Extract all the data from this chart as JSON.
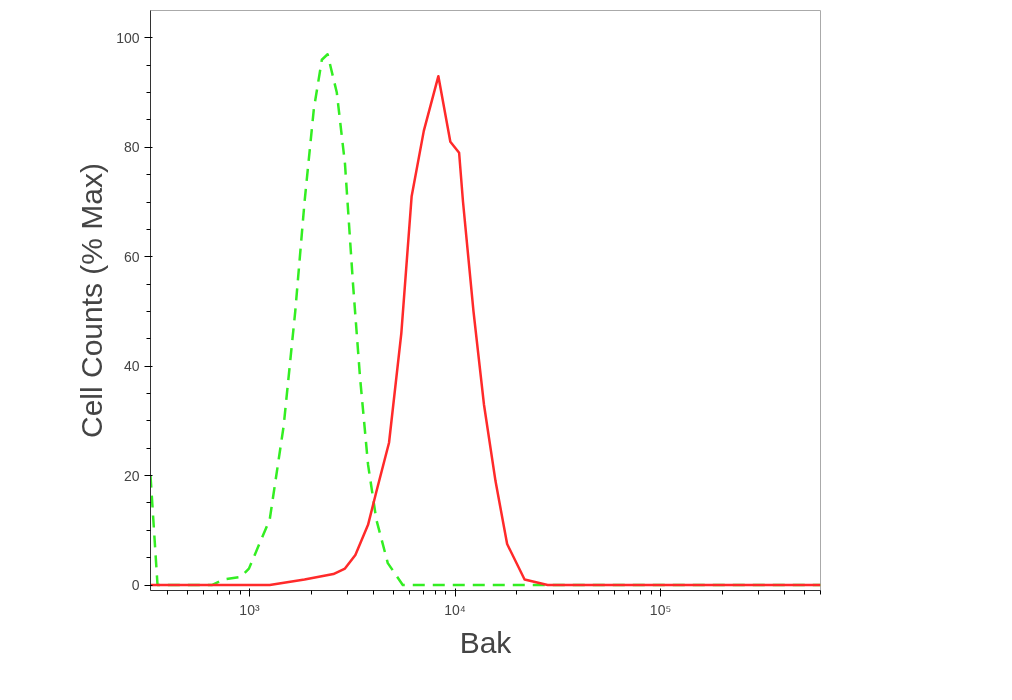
{
  "chart_data": {
    "type": "line",
    "xlabel": "Bak",
    "ylabel": "Cell Counts (% Max)",
    "log": "x",
    "xlim": [
      330,
      600000
    ],
    "xticks": [
      {
        "value": 1000,
        "label": "10³"
      },
      {
        "value": 10000,
        "label": "10⁴"
      },
      {
        "value": 100000,
        "label": "10⁵"
      }
    ],
    "ylim": [
      -1,
      105
    ],
    "yticks": [
      0,
      20,
      40,
      60,
      80,
      100
    ],
    "marker": "none",
    "series": [
      {
        "color": "#33ee22",
        "line_style": "dashed",
        "x": [
          330,
          357,
          656,
          747,
          907,
          994,
          1255,
          1466,
          1670,
          1853,
          2057,
          2250,
          2400,
          2660,
          2915,
          3190,
          3450,
          3775,
          4140,
          4710,
          5570,
          21800,
          600000
        ],
        "values": [
          20,
          0,
          0,
          1,
          1.5,
          3,
          12,
          29,
          50,
          70,
          87,
          96,
          97,
          90,
          77,
          55,
          38,
          22,
          12,
          4,
          0,
          0,
          0
        ]
      },
      {
        "color": "#ff2a2a",
        "line_style": "solid",
        "x": [
          330,
          1255,
          1853,
          2560,
          2915,
          3275,
          3775,
          4140,
          4775,
          5480,
          6150,
          7050,
          8300,
          9490,
          10470,
          10940,
          12300,
          13830,
          15740,
          17930,
          21800,
          28240,
          600000
        ],
        "values": [
          0,
          0,
          1,
          2,
          3,
          5.5,
          11,
          17,
          26,
          46,
          71,
          83,
          93,
          81,
          79,
          70,
          50,
          33,
          19,
          7.5,
          1,
          0,
          0
        ]
      }
    ]
  }
}
